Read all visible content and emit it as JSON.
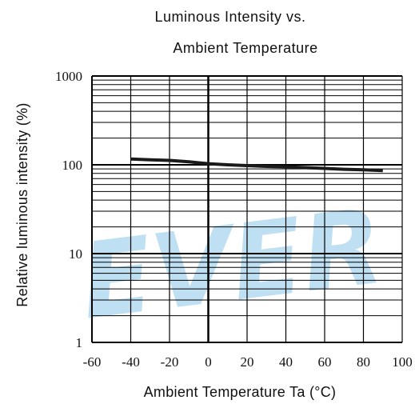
{
  "watermark": {
    "text": "EVER",
    "color": "#bfe0f2"
  },
  "chart_data": {
    "type": "line",
    "title_lines": [
      "Luminous Intensity vs.",
      "Ambient Temperature"
    ],
    "xlabel": "Ambient Temperature Ta (°C)",
    "ylabel": "Relative luminous intensity  (%)",
    "xlim": [
      -60,
      100
    ],
    "ylim": [
      1,
      1000
    ],
    "yscale": "log",
    "x_ticks": [
      -60,
      -40,
      -20,
      0,
      20,
      40,
      60,
      80,
      100
    ],
    "x_tick_labels": [
      "-60",
      "-40",
      "-20",
      "0",
      "20",
      "40",
      "60",
      "80",
      "100"
    ],
    "y_ticks": [
      1,
      10,
      100,
      1000
    ],
    "y_tick_labels": [
      "1",
      "10",
      "100",
      "1000"
    ],
    "grid": true,
    "series": [
      {
        "x": [
          -40,
          -30,
          -20,
          -10,
          0,
          10,
          20,
          30,
          40,
          50,
          60,
          70,
          80,
          90
        ],
        "y": [
          116,
          114,
          112,
          108,
          103,
          100,
          98,
          96,
          95,
          93,
          91,
          89,
          88,
          86
        ]
      }
    ],
    "colors": {
      "line": "#1a1a1a",
      "grid": "#000000",
      "axis": "#000000"
    }
  }
}
